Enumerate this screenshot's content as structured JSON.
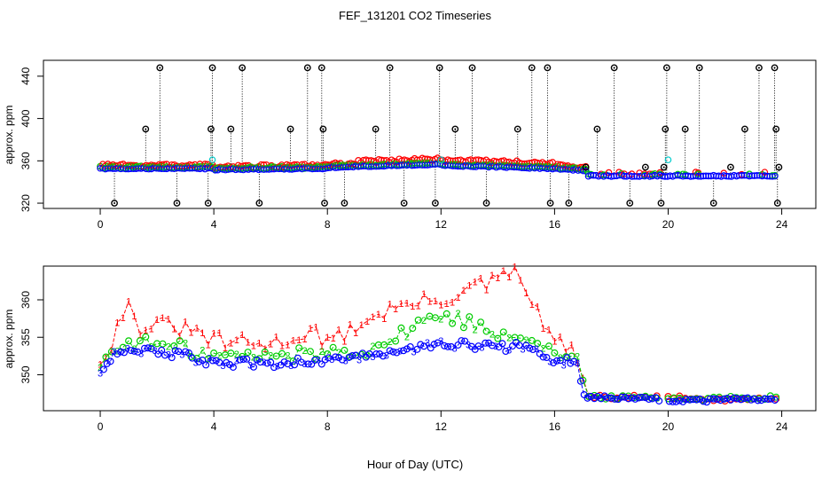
{
  "title": "FEF_131201  CO2 Timeseries",
  "x_axis_label": "Hour of Day (UTC)",
  "series_colors": {
    "1": "#ff0000",
    "2": "#00cc00",
    "3": "#0000ff",
    "spike": "#000000",
    "cyan": "#00cccc"
  },
  "chart_data": [
    {
      "type": "scatter",
      "panel": "top",
      "ylabel": "approx. ppm",
      "xlim": [
        -2,
        25.2
      ],
      "ylim": [
        315,
        455
      ],
      "xticks": [
        0,
        4,
        8,
        12,
        16,
        20,
        24
      ],
      "yticks": [
        320,
        360,
        400,
        440
      ],
      "baseline_segments": [
        {
          "x0": 0,
          "x1": 4,
          "y0": 353,
          "y1": 353
        },
        {
          "x0": 4,
          "x1": 8,
          "y0": 352,
          "y1": 353
        },
        {
          "x0": 8,
          "x1": 12,
          "y0": 354,
          "y1": 357
        },
        {
          "x0": 12,
          "x1": 16,
          "y0": 356,
          "y1": 353
        },
        {
          "x0": 16,
          "x1": 17.1,
          "y0": 353,
          "y1": 351
        },
        {
          "x0": 17.1,
          "x1": 19.8,
          "y0": 346,
          "y1": 346
        },
        {
          "x0": 19.8,
          "x1": 23.8,
          "y0": 346,
          "y1": 346
        }
      ],
      "spikes": [
        {
          "x": 0.5,
          "y": 320
        },
        {
          "x": 1.6,
          "y": 390
        },
        {
          "x": 2.1,
          "y": 448
        },
        {
          "x": 2.7,
          "y": 320
        },
        {
          "x": 3.8,
          "y": 320
        },
        {
          "x": 3.9,
          "y": 390
        },
        {
          "x": 3.95,
          "y": 448
        },
        {
          "x": 4.6,
          "y": 390
        },
        {
          "x": 5.0,
          "y": 448
        },
        {
          "x": 5.6,
          "y": 320
        },
        {
          "x": 6.7,
          "y": 390
        },
        {
          "x": 7.3,
          "y": 448
        },
        {
          "x": 7.8,
          "y": 448
        },
        {
          "x": 7.85,
          "y": 390
        },
        {
          "x": 7.9,
          "y": 320
        },
        {
          "x": 8.6,
          "y": 320
        },
        {
          "x": 9.7,
          "y": 390
        },
        {
          "x": 10.2,
          "y": 448
        },
        {
          "x": 10.7,
          "y": 320
        },
        {
          "x": 11.8,
          "y": 320
        },
        {
          "x": 11.95,
          "y": 448
        },
        {
          "x": 12.5,
          "y": 390
        },
        {
          "x": 13.1,
          "y": 448
        },
        {
          "x": 13.6,
          "y": 320
        },
        {
          "x": 14.7,
          "y": 390
        },
        {
          "x": 15.2,
          "y": 448
        },
        {
          "x": 15.75,
          "y": 448
        },
        {
          "x": 15.85,
          "y": 320
        },
        {
          "x": 16.5,
          "y": 320
        },
        {
          "x": 17.5,
          "y": 390
        },
        {
          "x": 18.1,
          "y": 448
        },
        {
          "x": 18.65,
          "y": 320
        },
        {
          "x": 19.2,
          "y": 354
        },
        {
          "x": 19.75,
          "y": 320
        },
        {
          "x": 19.85,
          "y": 354
        },
        {
          "x": 19.9,
          "y": 390
        },
        {
          "x": 19.95,
          "y": 448
        },
        {
          "x": 20.6,
          "y": 390
        },
        {
          "x": 21.1,
          "y": 448
        },
        {
          "x": 21.6,
          "y": 320
        },
        {
          "x": 22.7,
          "y": 390
        },
        {
          "x": 23.2,
          "y": 448
        },
        {
          "x": 23.75,
          "y": 448
        },
        {
          "x": 23.8,
          "y": 390
        },
        {
          "x": 23.85,
          "y": 320
        },
        {
          "x": 23.9,
          "y": 354
        },
        {
          "x": 17.1,
          "y": 354
        },
        {
          "x": 22.2,
          "y": 354
        }
      ],
      "cyan_points": [
        {
          "x": 3.95,
          "y": 361
        },
        {
          "x": 12.0,
          "y": 361
        },
        {
          "x": 20.0,
          "y": 361
        }
      ]
    },
    {
      "type": "line",
      "panel": "bottom",
      "ylabel": "approx. ppm",
      "xlim": [
        -2,
        25.2
      ],
      "ylim": [
        345.2,
        364.5
      ],
      "xticks": [
        0,
        4,
        8,
        12,
        16,
        20,
        24
      ],
      "yticks": [
        350,
        355,
        360
      ],
      "series": [
        {
          "name": "1",
          "marker": "1",
          "color": "#ff0000",
          "keypoints": [
            [
              0,
              352
            ],
            [
              0.5,
              355
            ],
            [
              0.9,
              360
            ],
            [
              1.3,
              356.5
            ],
            [
              2.5,
              356.5
            ],
            [
              3.5,
              355.5
            ],
            [
              4,
              354.5
            ],
            [
              6,
              354
            ],
            [
              7.5,
              356
            ],
            [
              8,
              354
            ],
            [
              9,
              356.5
            ],
            [
              10,
              358.5
            ],
            [
              11,
              359.5
            ],
            [
              12,
              360
            ],
            [
              13,
              361.5
            ],
            [
              14,
              362.5
            ],
            [
              14.5,
              364
            ],
            [
              15,
              361
            ],
            [
              16,
              354.5
            ],
            [
              16.8,
              352.5
            ],
            [
              17.1,
              347
            ],
            [
              19.8,
              347
            ],
            [
              20.5,
              347
            ],
            [
              21.5,
              346.5
            ],
            [
              23.8,
              347
            ]
          ],
          "amp": 1.2,
          "step": 0.2
        },
        {
          "name": "2",
          "marker": "2",
          "color": "#00cc00",
          "keypoints": [
            [
              0,
              351.5
            ],
            [
              0.5,
              353
            ],
            [
              1,
              354.5
            ],
            [
              2,
              354
            ],
            [
              3,
              353.5
            ],
            [
              4,
              352.5
            ],
            [
              6,
              352.5
            ],
            [
              8,
              353
            ],
            [
              9.5,
              353.5
            ],
            [
              10.5,
              355
            ],
            [
              11,
              356.5
            ],
            [
              12,
              358
            ],
            [
              13,
              357
            ],
            [
              14,
              355.5
            ],
            [
              15,
              355.5
            ],
            [
              16,
              353
            ],
            [
              16.8,
              352
            ],
            [
              17.1,
              347
            ],
            [
              19.8,
              347
            ],
            [
              20.5,
              346.8
            ],
            [
              23.8,
              347
            ]
          ],
          "amp": 1.0,
          "step": 0.2
        },
        {
          "name": "3",
          "marker": "3",
          "color": "#0000ff",
          "keypoints": [
            [
              0,
              350.5
            ],
            [
              0.5,
              353
            ],
            [
              1,
              353.5
            ],
            [
              2,
              353
            ],
            [
              3,
              352.5
            ],
            [
              4,
              351.5
            ],
            [
              6,
              351.5
            ],
            [
              8,
              352
            ],
            [
              9.5,
              352.5
            ],
            [
              10.5,
              353
            ],
            [
              11,
              353.5
            ],
            [
              12,
              354
            ],
            [
              13,
              354
            ],
            [
              14,
              353.5
            ],
            [
              15,
              354
            ],
            [
              16,
              352
            ],
            [
              16.8,
              351.5
            ],
            [
              17.1,
              347
            ],
            [
              19.8,
              346.7
            ],
            [
              20.5,
              346.5
            ],
            [
              23.8,
              346.8
            ]
          ],
          "amp": 0.6,
          "step": 0.12
        }
      ]
    }
  ]
}
